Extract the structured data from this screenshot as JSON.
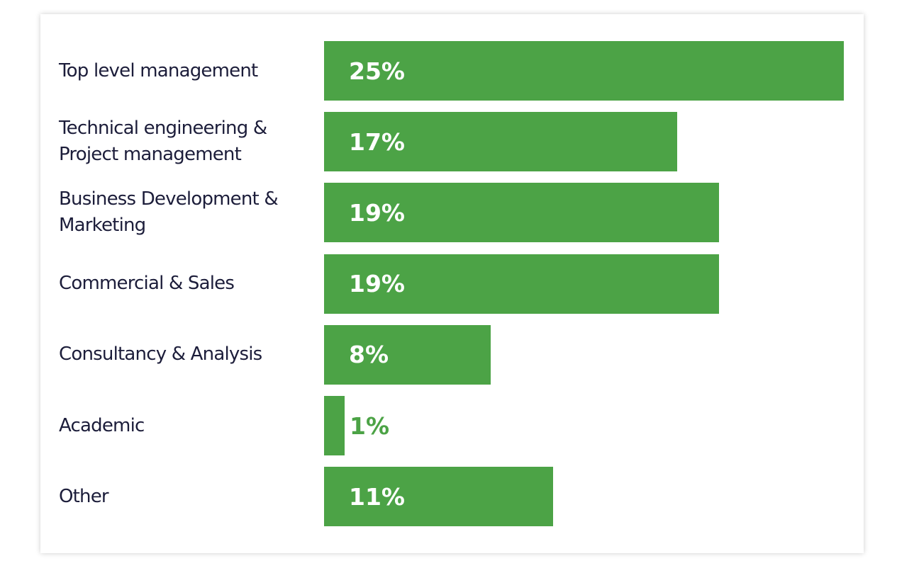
{
  "chart_data": {
    "type": "bar",
    "orientation": "horizontal",
    "categories": [
      "Top level management",
      "Technical engineering & Project management",
      "Business Development & Marketing",
      "Commercial & Sales",
      "Consultancy & Analysis",
      "Academic",
      "Other"
    ],
    "values": [
      25,
      17,
      19,
      19,
      8,
      1,
      11
    ],
    "value_labels": [
      "25%",
      "17%",
      "19%",
      "19%",
      "8%",
      "1%",
      "11%"
    ],
    "xlim": [
      0,
      25
    ],
    "grid": false,
    "legend": "none"
  },
  "colors": {
    "bar": "#4ca346",
    "bar_label_inside": "#ffffff",
    "bar_label_outside": "#4ca346",
    "category_text": "#1c1d3a"
  }
}
